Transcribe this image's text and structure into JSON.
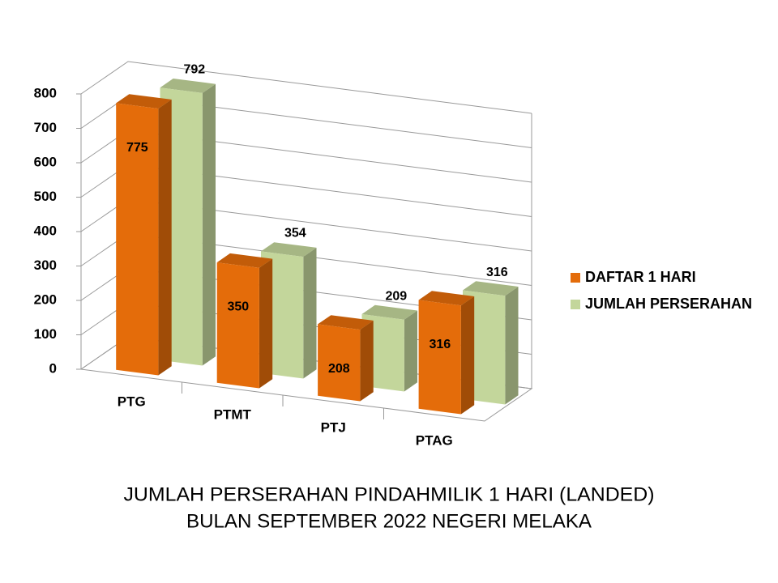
{
  "chart_data": {
    "type": "bar3d",
    "title": [
      "JUMLAH PERSERAHAN PINDAHMILIK 1 HARI (LANDED)",
      "BULAN SEPTEMBER 2022 NEGERI MELAKA"
    ],
    "categories": [
      "PTG",
      "PTMT",
      "PTJ",
      "PTAG"
    ],
    "series": [
      {
        "name": "DAFTAR 1 HARI",
        "color": "#e46c0a",
        "values": [
          775,
          350,
          208,
          316
        ]
      },
      {
        "name": "JUMLAH PERSERAHAN",
        "color": "#c3d69b",
        "values": [
          792,
          354,
          209,
          316
        ]
      }
    ],
    "ylim": [
      0,
      800
    ],
    "yticks": [
      0,
      100,
      200,
      300,
      400,
      500,
      600,
      700,
      800
    ],
    "grid": true,
    "legend": "right"
  }
}
